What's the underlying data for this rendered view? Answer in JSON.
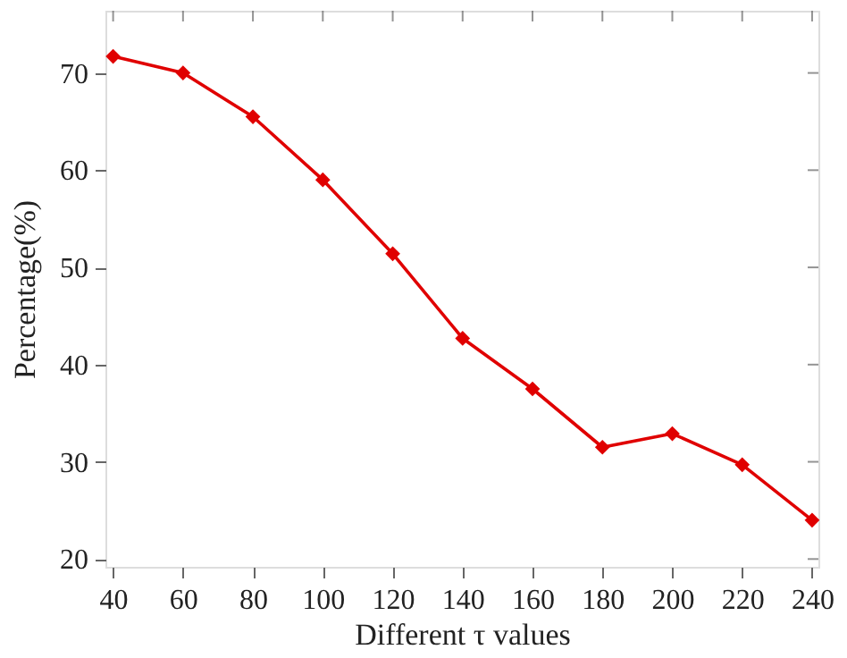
{
  "chart_data": {
    "type": "line",
    "xlabel": "Different τ values",
    "ylabel": "Percentage(%)",
    "x": [
      40,
      60,
      80,
      100,
      120,
      140,
      160,
      180,
      200,
      220,
      240
    ],
    "series": [
      {
        "color": "#e00000",
        "values": [
          71.7,
          70.0,
          65.5,
          59.0,
          51.4,
          42.7,
          37.5,
          31.5,
          32.9,
          29.7,
          24.0
        ]
      }
    ],
    "xlim": [
      37.8,
      241.8
    ],
    "ylim": [
      19.2,
      76.4
    ],
    "xticks": [
      40,
      60,
      80,
      100,
      120,
      140,
      160,
      180,
      200,
      220,
      240
    ],
    "yticks": [
      20,
      30,
      40,
      50,
      60,
      70
    ],
    "marker": "diamond",
    "line_style": "solid",
    "grid": false
  }
}
